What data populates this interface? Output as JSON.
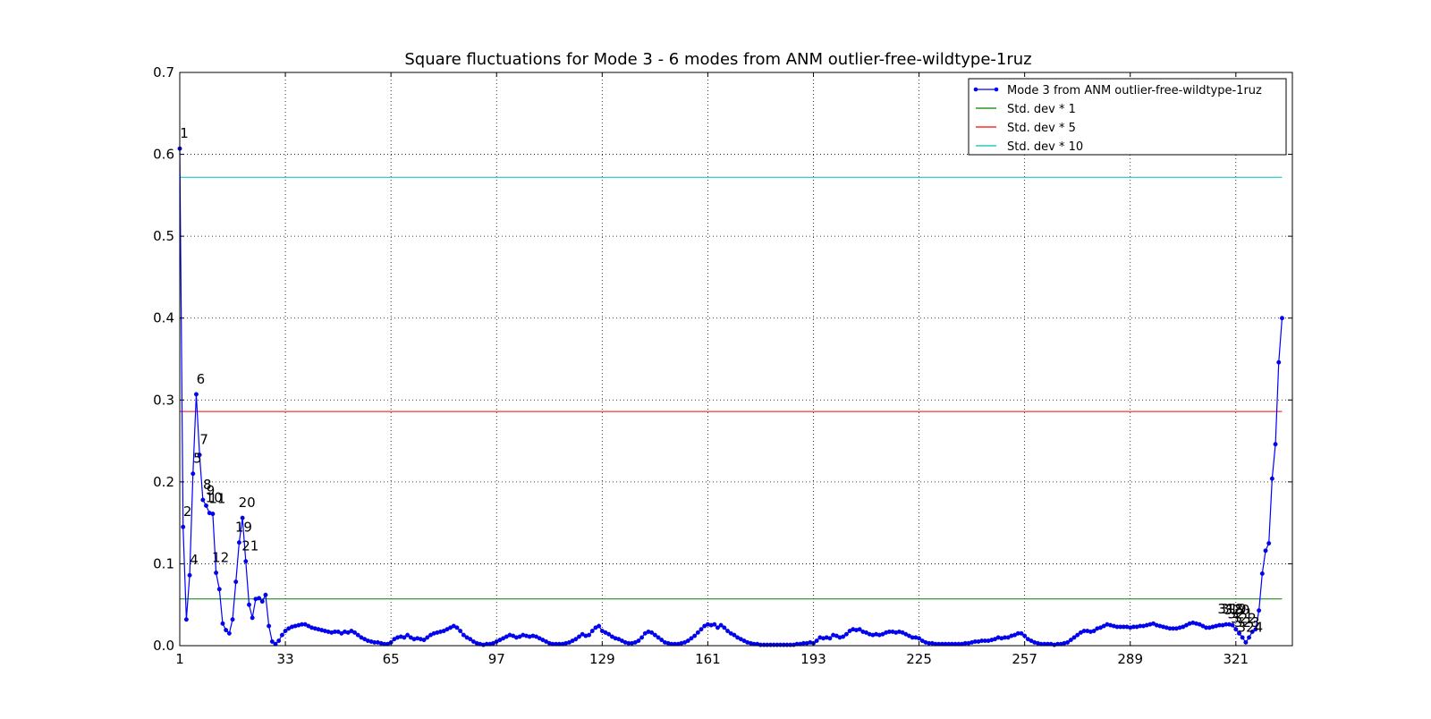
{
  "chart_data": {
    "type": "line",
    "title": "Square fluctuations for Mode 3 - 6 modes from ANM outlier-free-wildtype-1ruz",
    "xlabel": "",
    "ylabel": "",
    "xlim": [
      1,
      325
    ],
    "ylim": [
      0.0,
      0.7
    ],
    "grid": true,
    "legend_position": "top-right",
    "x_ticks": [
      "1",
      "33",
      "65",
      "97",
      "129",
      "161",
      "193",
      "225",
      "257",
      "289",
      "321"
    ],
    "y_ticks": [
      "0.0",
      "0.1",
      "0.2",
      "0.3",
      "0.4",
      "0.5",
      "0.6",
      "0.7"
    ],
    "series": [
      {
        "name": "Mode 3 from ANM outlier-free-wildtype-1ruz",
        "color": "#0000ff",
        "x_start": 1,
        "values": [
          0.607,
          0.145,
          0.032,
          0.086,
          0.21,
          0.307,
          0.233,
          0.178,
          0.171,
          0.162,
          0.161,
          0.089,
          0.069,
          0.027,
          0.019,
          0.015,
          0.032,
          0.078,
          0.126,
          0.156,
          0.103,
          0.05,
          0.034,
          0.057,
          0.058,
          0.054,
          0.062,
          0.024,
          0.005,
          0.002,
          0.006,
          0.013,
          0.018,
          0.021,
          0.023,
          0.024,
          0.025,
          0.026,
          0.026,
          0.024,
          0.022,
          0.021,
          0.02,
          0.019,
          0.018,
          0.017,
          0.016,
          0.017,
          0.017,
          0.015,
          0.017,
          0.016,
          0.018,
          0.016,
          0.013,
          0.01,
          0.008,
          0.006,
          0.005,
          0.004,
          0.004,
          0.003,
          0.002,
          0.002,
          0.004,
          0.008,
          0.01,
          0.011,
          0.01,
          0.013,
          0.01,
          0.008,
          0.009,
          0.008,
          0.007,
          0.01,
          0.013,
          0.015,
          0.016,
          0.017,
          0.018,
          0.02,
          0.022,
          0.024,
          0.022,
          0.018,
          0.013,
          0.01,
          0.008,
          0.005,
          0.003,
          0.002,
          0.001,
          0.002,
          0.002,
          0.003,
          0.005,
          0.007,
          0.009,
          0.011,
          0.013,
          0.012,
          0.01,
          0.011,
          0.013,
          0.012,
          0.011,
          0.012,
          0.011,
          0.009,
          0.007,
          0.005,
          0.003,
          0.002,
          0.002,
          0.002,
          0.002,
          0.003,
          0.004,
          0.006,
          0.008,
          0.011,
          0.014,
          0.012,
          0.013,
          0.018,
          0.022,
          0.024,
          0.018,
          0.016,
          0.014,
          0.011,
          0.009,
          0.008,
          0.006,
          0.004,
          0.003,
          0.003,
          0.004,
          0.006,
          0.01,
          0.015,
          0.017,
          0.016,
          0.013,
          0.01,
          0.007,
          0.004,
          0.003,
          0.002,
          0.002,
          0.002,
          0.003,
          0.004,
          0.006,
          0.009,
          0.012,
          0.016,
          0.02,
          0.024,
          0.026,
          0.025,
          0.026,
          0.022,
          0.025,
          0.022,
          0.018,
          0.015,
          0.013,
          0.01,
          0.008,
          0.006,
          0.004,
          0.003,
          0.002,
          0.002,
          0.001,
          0.001,
          0.001,
          0.001,
          0.001,
          0.001,
          0.001,
          0.001,
          0.001,
          0.001,
          0.001,
          0.002,
          0.002,
          0.003,
          0.003,
          0.004,
          0.003,
          0.006,
          0.01,
          0.009,
          0.01,
          0.009,
          0.013,
          0.012,
          0.01,
          0.011,
          0.014,
          0.018,
          0.02,
          0.019,
          0.02,
          0.017,
          0.016,
          0.014,
          0.013,
          0.014,
          0.013,
          0.014,
          0.016,
          0.017,
          0.017,
          0.016,
          0.017,
          0.016,
          0.014,
          0.012,
          0.01,
          0.01,
          0.009,
          0.006,
          0.004,
          0.003,
          0.003,
          0.002,
          0.002,
          0.002,
          0.002,
          0.002,
          0.002,
          0.002,
          0.002,
          0.002,
          0.003,
          0.003,
          0.004,
          0.005,
          0.005,
          0.006,
          0.006,
          0.006,
          0.007,
          0.008,
          0.01,
          0.009,
          0.01,
          0.01,
          0.012,
          0.013,
          0.015,
          0.015,
          0.012,
          0.008,
          0.006,
          0.004,
          0.003,
          0.002,
          0.002,
          0.002,
          0.002,
          0.001,
          0.002,
          0.002,
          0.003,
          0.004,
          0.007,
          0.01,
          0.013,
          0.016,
          0.018,
          0.018,
          0.017,
          0.018,
          0.021,
          0.022,
          0.024,
          0.026,
          0.025,
          0.024,
          0.023,
          0.023,
          0.023,
          0.023,
          0.022,
          0.023,
          0.023,
          0.024,
          0.024,
          0.025,
          0.026,
          0.027,
          0.025,
          0.024,
          0.023,
          0.022,
          0.021,
          0.021,
          0.021,
          0.022,
          0.023,
          0.025,
          0.027,
          0.028,
          0.027,
          0.026,
          0.024,
          0.022,
          0.022,
          0.023,
          0.024,
          0.025,
          0.025,
          0.026,
          0.026,
          0.025,
          0.02,
          0.015,
          0.01,
          0.004,
          0.01,
          0.017,
          0.02,
          0.043,
          0.088,
          0.116,
          0.125,
          0.204,
          0.246,
          0.346,
          0.4
        ]
      },
      {
        "name": "Std. dev * 1",
        "color": "#008000",
        "y": 0.057
      },
      {
        "name": "Std. dev * 5",
        "color": "#ff0000",
        "y": 0.286
      },
      {
        "name": "Std. dev * 10",
        "color": "#00bfbf",
        "y": 0.572
      }
    ],
    "annotations": [
      {
        "text": "1",
        "x": 1
      },
      {
        "text": "2",
        "x": 2
      },
      {
        "text": "4",
        "x": 4
      },
      {
        "text": "5",
        "x": 5
      },
      {
        "text": "6",
        "x": 6
      },
      {
        "text": "7",
        "x": 7
      },
      {
        "text": "8",
        "x": 8
      },
      {
        "text": "9",
        "x": 9
      },
      {
        "text": "10",
        "x": 10
      },
      {
        "text": "11",
        "x": 11
      },
      {
        "text": "12",
        "x": 12
      },
      {
        "text": "19",
        "x": 19
      },
      {
        "text": "20",
        "x": 20
      },
      {
        "text": "21",
        "x": 21
      },
      {
        "text": "318",
        "x": 318
      },
      {
        "text": "319",
        "x": 319
      },
      {
        "text": "320",
        "x": 320
      },
      {
        "text": "321",
        "x": 321
      },
      {
        "text": "322",
        "x": 322
      },
      {
        "text": "323",
        "x": 323
      },
      {
        "text": "324",
        "x": 324
      }
    ]
  }
}
